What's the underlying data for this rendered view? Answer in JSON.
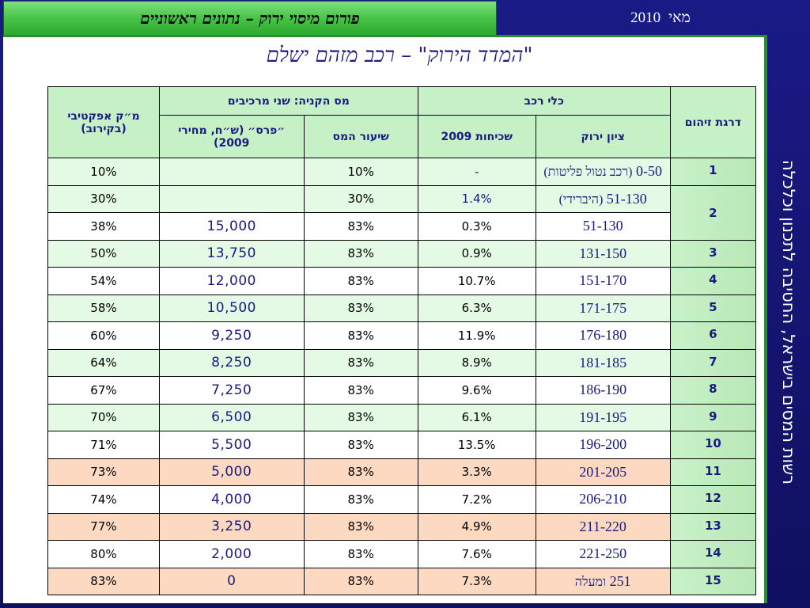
{
  "header": {
    "title": "פורום מיסוי ירוק – נתונים ראשוניים",
    "date_month": "מאי",
    "date_year": "2010"
  },
  "page_title": "\"המדד הירוק\" – רכב מזהם ישלם",
  "side_text": "רשות המסים בישראל, החטיבה לתכנון וכלכלה",
  "table": {
    "headers": {
      "rank": "דרגת זיהום",
      "vehicle_group": "כלי רכב",
      "purchase_tax_group": "מס הקניה: שני מרכיבים",
      "effective": "מ״ק אפקטיבי (בקירוב)",
      "green_grade": "ציון ירוק",
      "share_2009": "שכיחות 2009",
      "tax_rate": "שיעור המס",
      "bonus": "״פרס״ (ש״ח, מחירי 2009)"
    },
    "rows": [
      {
        "rank": "1",
        "grade": "0-50",
        "grade_note": "(רכב נטול פליטות)",
        "share": "-",
        "tax": "10%",
        "bonus": "",
        "effective": "10%",
        "style": "green"
      },
      {
        "rank": "2",
        "grade": "51-130",
        "grade_note": "(היברידי)",
        "share": "1.4%",
        "tax": "30%",
        "bonus": "",
        "effective": "30%",
        "style": "green"
      },
      {
        "rank": "",
        "grade": "51-130",
        "grade_note": "",
        "share": "0.3%",
        "tax": "83%",
        "bonus": "15,000",
        "effective": "38%",
        "style": "white"
      },
      {
        "rank": "3",
        "grade": "131-150",
        "grade_note": "",
        "share": "0.9%",
        "tax": "83%",
        "bonus": "13,750",
        "effective": "50%",
        "style": "green"
      },
      {
        "rank": "4",
        "grade": "151-170",
        "grade_note": "",
        "share": "10.7%",
        "tax": "83%",
        "bonus": "12,000",
        "effective": "54%",
        "style": "white"
      },
      {
        "rank": "5",
        "grade": "171-175",
        "grade_note": "",
        "share": "6.3%",
        "tax": "83%",
        "bonus": "10,500",
        "effective": "58%",
        "style": "green"
      },
      {
        "rank": "6",
        "grade": "176-180",
        "grade_note": "",
        "share": "11.9%",
        "tax": "83%",
        "bonus": "9,250",
        "effective": "60%",
        "style": "white"
      },
      {
        "rank": "7",
        "grade": "181-185",
        "grade_note": "",
        "share": "8.9%",
        "tax": "83%",
        "bonus": "8,250",
        "effective": "64%",
        "style": "green"
      },
      {
        "rank": "8",
        "grade": "186-190",
        "grade_note": "",
        "share": "9.6%",
        "tax": "83%",
        "bonus": "7,250",
        "effective": "67%",
        "style": "white"
      },
      {
        "rank": "9",
        "grade": "191-195",
        "grade_note": "",
        "share": "6.1%",
        "tax": "83%",
        "bonus": "6,500",
        "effective": "70%",
        "style": "green"
      },
      {
        "rank": "10",
        "grade": "196-200",
        "grade_note": "",
        "share": "13.5%",
        "tax": "83%",
        "bonus": "5,500",
        "effective": "71%",
        "style": "white"
      },
      {
        "rank": "11",
        "grade": "201-205",
        "grade_note": "",
        "share": "3.3%",
        "tax": "83%",
        "bonus": "5,000",
        "effective": "73%",
        "style": "peach"
      },
      {
        "rank": "12",
        "grade": "206-210",
        "grade_note": "",
        "share": "7.2%",
        "tax": "83%",
        "bonus": "4,000",
        "effective": "74%",
        "style": "white"
      },
      {
        "rank": "13",
        "grade": "211-220",
        "grade_note": "",
        "share": "4.9%",
        "tax": "83%",
        "bonus": "3,250",
        "effective": "77%",
        "style": "peach"
      },
      {
        "rank": "14",
        "grade": "221-250",
        "grade_note": "",
        "share": "7.6%",
        "tax": "83%",
        "bonus": "2,000",
        "effective": "80%",
        "style": "white"
      },
      {
        "rank": "15",
        "grade": "251",
        "grade_note": "ומעלה",
        "share": "7.3%",
        "tax": "83%",
        "bonus": "0",
        "effective": "83%",
        "style": "peach"
      }
    ]
  }
}
